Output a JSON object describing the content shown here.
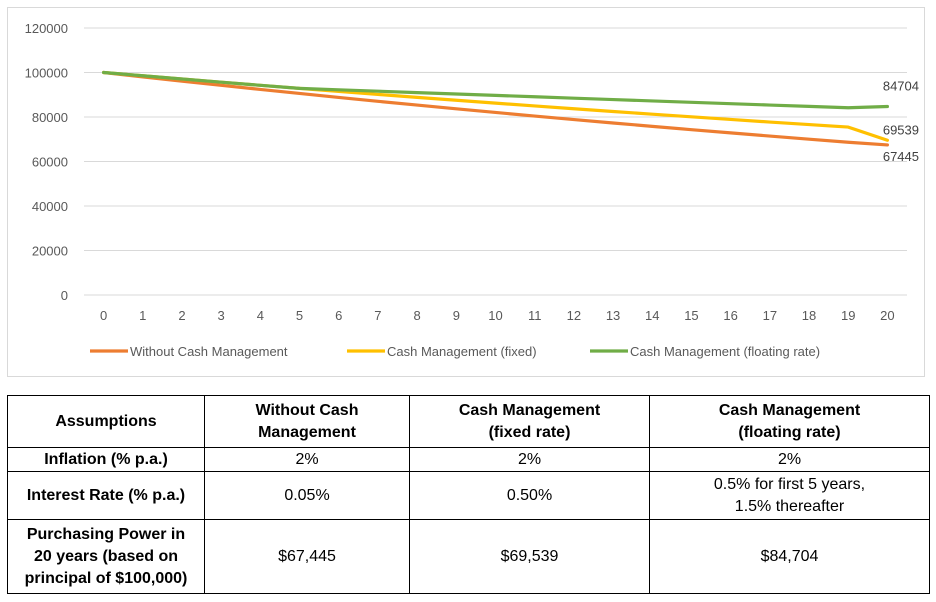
{
  "chart_data": {
    "type": "line",
    "x": [
      0,
      1,
      2,
      3,
      4,
      5,
      6,
      7,
      8,
      9,
      10,
      11,
      12,
      13,
      14,
      15,
      16,
      17,
      18,
      19,
      20
    ],
    "ylim": [
      0,
      120000
    ],
    "yticks": [
      0,
      20000,
      40000,
      60000,
      80000,
      100000,
      120000
    ],
    "grid": true,
    "legend_position": "bottom",
    "series": [
      {
        "name": "Without Cash Management",
        "color": "#ED7D31",
        "values": [
          100000,
          98043,
          96122,
          94238,
          92390,
          90580,
          88805,
          87064,
          85357,
          83684,
          82044,
          80435,
          78858,
          77313,
          75797,
          74311,
          72854,
          71426,
          70025,
          68653,
          67445
        ],
        "end_label": "67445"
      },
      {
        "name": "Cash Management (fixed)",
        "color": "#FFC000",
        "values": [
          100000,
          98529,
          97081,
          95653,
          94247,
          92861,
          91495,
          90150,
          88824,
          87518,
          86231,
          84963,
          83713,
          82482,
          81269,
          80074,
          78897,
          77737,
          76593,
          75467,
          69539
        ],
        "end_label": "69539"
      },
      {
        "name": "Cash Management (floating rate)",
        "color": "#70AD47",
        "values": [
          100000,
          98529,
          97081,
          95653,
          94247,
          92861,
          92228,
          91597,
          90968,
          90340,
          89714,
          89089,
          88466,
          87845,
          87225,
          86607,
          85990,
          85375,
          84761,
          84149,
          84704
        ],
        "end_label": "84704"
      }
    ]
  },
  "table": {
    "headers": [
      "Assumptions",
      "Without Cash\nManagement",
      "Cash Management\n(fixed rate)",
      "Cash Management\n(floating rate)"
    ],
    "rows": [
      {
        "label": "Inflation (% p.a.)",
        "values": [
          "2%",
          "2%",
          "2%"
        ]
      },
      {
        "label": "Interest Rate (% p.a.)",
        "values": [
          "0.05%",
          "0.50%",
          "0.5% for first 5 years,\n1.5% thereafter"
        ]
      },
      {
        "label": "Purchasing Power in\n20 years (based on\nprincipal of $100,000)",
        "values": [
          "$67,445",
          "$69,539",
          "$84,704"
        ]
      }
    ]
  }
}
